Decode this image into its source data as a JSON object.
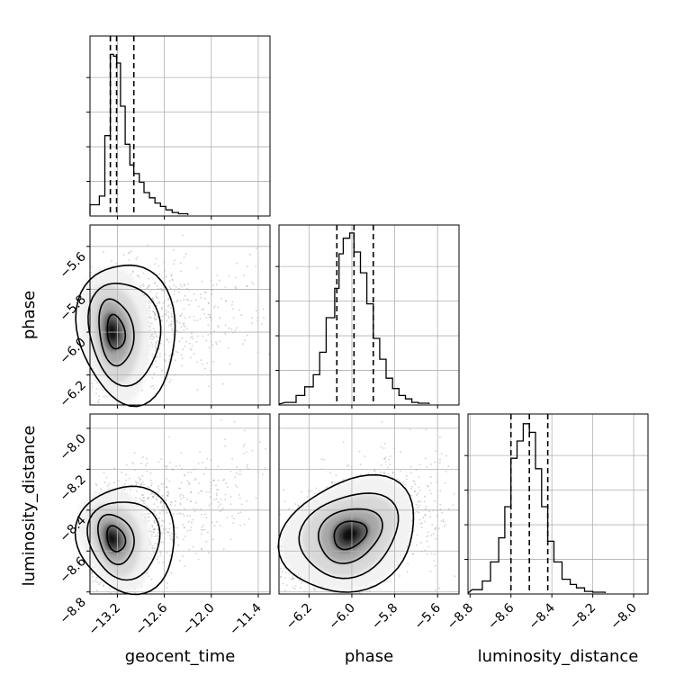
{
  "chart_data": {
    "type": "corner",
    "parameters": [
      "geocent_time",
      "phase",
      "luminosity_distance"
    ],
    "axis_labels": {
      "geocent_time": "geocent_time",
      "phase": "phase",
      "luminosity_distance": "luminosity_distance"
    },
    "ranges": {
      "geocent_time": [
        -13.55,
        -11.25
      ],
      "phase": [
        -6.34,
        -5.5
      ],
      "luminosity_distance": [
        -8.81,
        -7.93
      ]
    },
    "ticks": {
      "geocent_time": {
        "values": [
          -13.2,
          -12.6,
          -12.0,
          -11.4
        ],
        "labels": [
          "−13.2",
          "−12.6",
          "−12.0",
          "−11.4"
        ]
      },
      "phase": {
        "values": [
          -6.2,
          -6.0,
          -5.8,
          -5.6
        ],
        "labels": [
          "−6.2",
          "−6.0",
          "−5.8",
          "−5.6"
        ]
      },
      "luminosity_distance": {
        "values": [
          -8.8,
          -8.6,
          -8.4,
          -8.2,
          -8.0
        ],
        "labels": [
          "−8.8",
          "−8.6",
          "−8.4",
          "−8.2",
          "−8.0"
        ]
      }
    },
    "quantiles": {
      "geocent_time": [
        -13.29,
        -13.21,
        -12.99
      ],
      "phase": [
        -6.07,
        -5.99,
        -5.9
      ],
      "luminosity_distance": [
        -8.6,
        -8.51,
        -8.42
      ]
    },
    "histograms": {
      "geocent_time": {
        "edges": [
          -13.55,
          -13.43,
          -13.36,
          -13.29,
          -13.25,
          -13.21,
          -13.16,
          -13.1,
          -13.04,
          -12.99,
          -12.92,
          -12.86,
          -12.79,
          -12.72,
          -12.65,
          -12.58,
          -12.5,
          -12.42,
          -12.3
        ],
        "counts": [
          0.06,
          0.11,
          0.46,
          0.93,
          0.92,
          0.88,
          0.63,
          0.41,
          0.29,
          0.24,
          0.19,
          0.13,
          0.1,
          0.07,
          0.05,
          0.03,
          0.015,
          0.008
        ]
      },
      "phase": {
        "edges": [
          -6.31,
          -6.26,
          -6.22,
          -6.18,
          -6.15,
          -6.12,
          -6.08,
          -6.06,
          -6.04,
          -6.01,
          -5.99,
          -5.96,
          -5.93,
          -5.9,
          -5.87,
          -5.84,
          -5.81,
          -5.78,
          -5.75,
          -5.72,
          -5.69,
          -5.64
        ],
        "counts": [
          0.01,
          0.05,
          0.1,
          0.17,
          0.3,
          0.5,
          0.67,
          0.87,
          0.96,
          0.99,
          0.88,
          0.76,
          0.58,
          0.38,
          0.26,
          0.15,
          0.09,
          0.05,
          0.03,
          0.01,
          0.005
        ]
      },
      "luminosity_distance": {
        "edges": [
          -8.79,
          -8.74,
          -8.7,
          -8.66,
          -8.63,
          -8.6,
          -8.57,
          -8.54,
          -8.51,
          -8.48,
          -8.45,
          -8.42,
          -8.39,
          -8.35,
          -8.31,
          -8.28,
          -8.24,
          -8.2,
          -8.14
        ],
        "counts": [
          0.02,
          0.07,
          0.18,
          0.32,
          0.5,
          0.78,
          0.88,
          0.98,
          0.93,
          0.72,
          0.5,
          0.3,
          0.18,
          0.08,
          0.05,
          0.03,
          0.01,
          0.005
        ]
      }
    },
    "joint": [
      {
        "x": "geocent_time",
        "y": "phase",
        "center": [
          -13.22,
          -6.0
        ],
        "spread": [
          0.14,
          0.1
        ],
        "correlation": 0.15,
        "tail": "geocent_time"
      },
      {
        "x": "geocent_time",
        "y": "luminosity_distance",
        "center": [
          -13.22,
          -8.54
        ],
        "spread": [
          0.14,
          0.08
        ],
        "correlation": 0.35,
        "tail": "geocent_time"
      },
      {
        "x": "phase",
        "y": "luminosity_distance",
        "center": [
          -6.01,
          -8.52
        ],
        "spread": [
          0.1,
          0.08
        ],
        "correlation": 0.55
      }
    ],
    "grid": true,
    "colors": {
      "line": "#000000",
      "quantile": "#000000",
      "grid": "#b0b0b0",
      "points": "#9a9a9a"
    }
  }
}
